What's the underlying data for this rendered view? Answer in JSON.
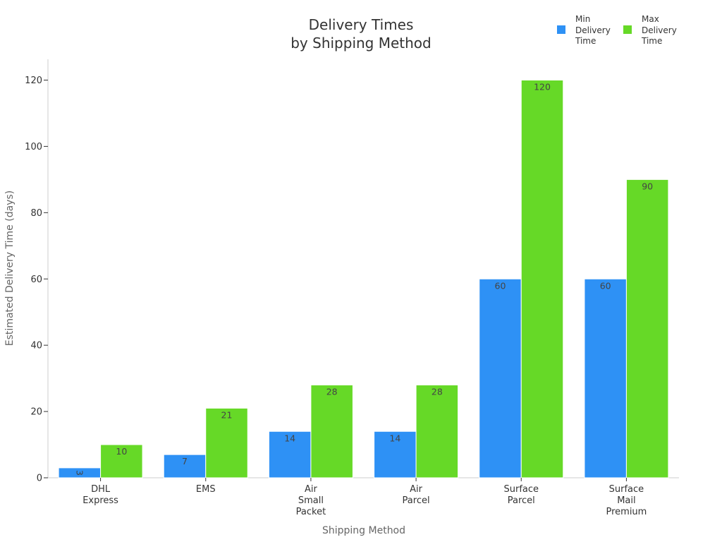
{
  "chart_data": {
    "type": "bar",
    "title_lines": [
      "Delivery Times",
      "by Shipping Method"
    ],
    "xlabel": "Shipping Method",
    "ylabel": "Estimated Delivery Time (days)",
    "ylim": [
      0,
      126
    ],
    "yticks": [
      0,
      20,
      40,
      60,
      80,
      100,
      120
    ],
    "categories": [
      [
        "DHL",
        "Express"
      ],
      [
        "EMS"
      ],
      [
        "Air",
        "Small",
        "Packet"
      ],
      [
        "Air",
        "Parcel"
      ],
      [
        "Surface",
        "Parcel"
      ],
      [
        "Surface",
        "Mail",
        "Premium"
      ]
    ],
    "series": [
      {
        "name_lines": [
          "Min",
          "Delivery",
          "Time"
        ],
        "color": "#2e91f5",
        "values": [
          3,
          7,
          14,
          14,
          60,
          60
        ]
      },
      {
        "name_lines": [
          "Max",
          "Delivery",
          "Time"
        ],
        "color": "#66d927",
        "values": [
          10,
          21,
          28,
          28,
          120,
          90
        ]
      }
    ],
    "legend_position": "top-right",
    "grid": false
  }
}
